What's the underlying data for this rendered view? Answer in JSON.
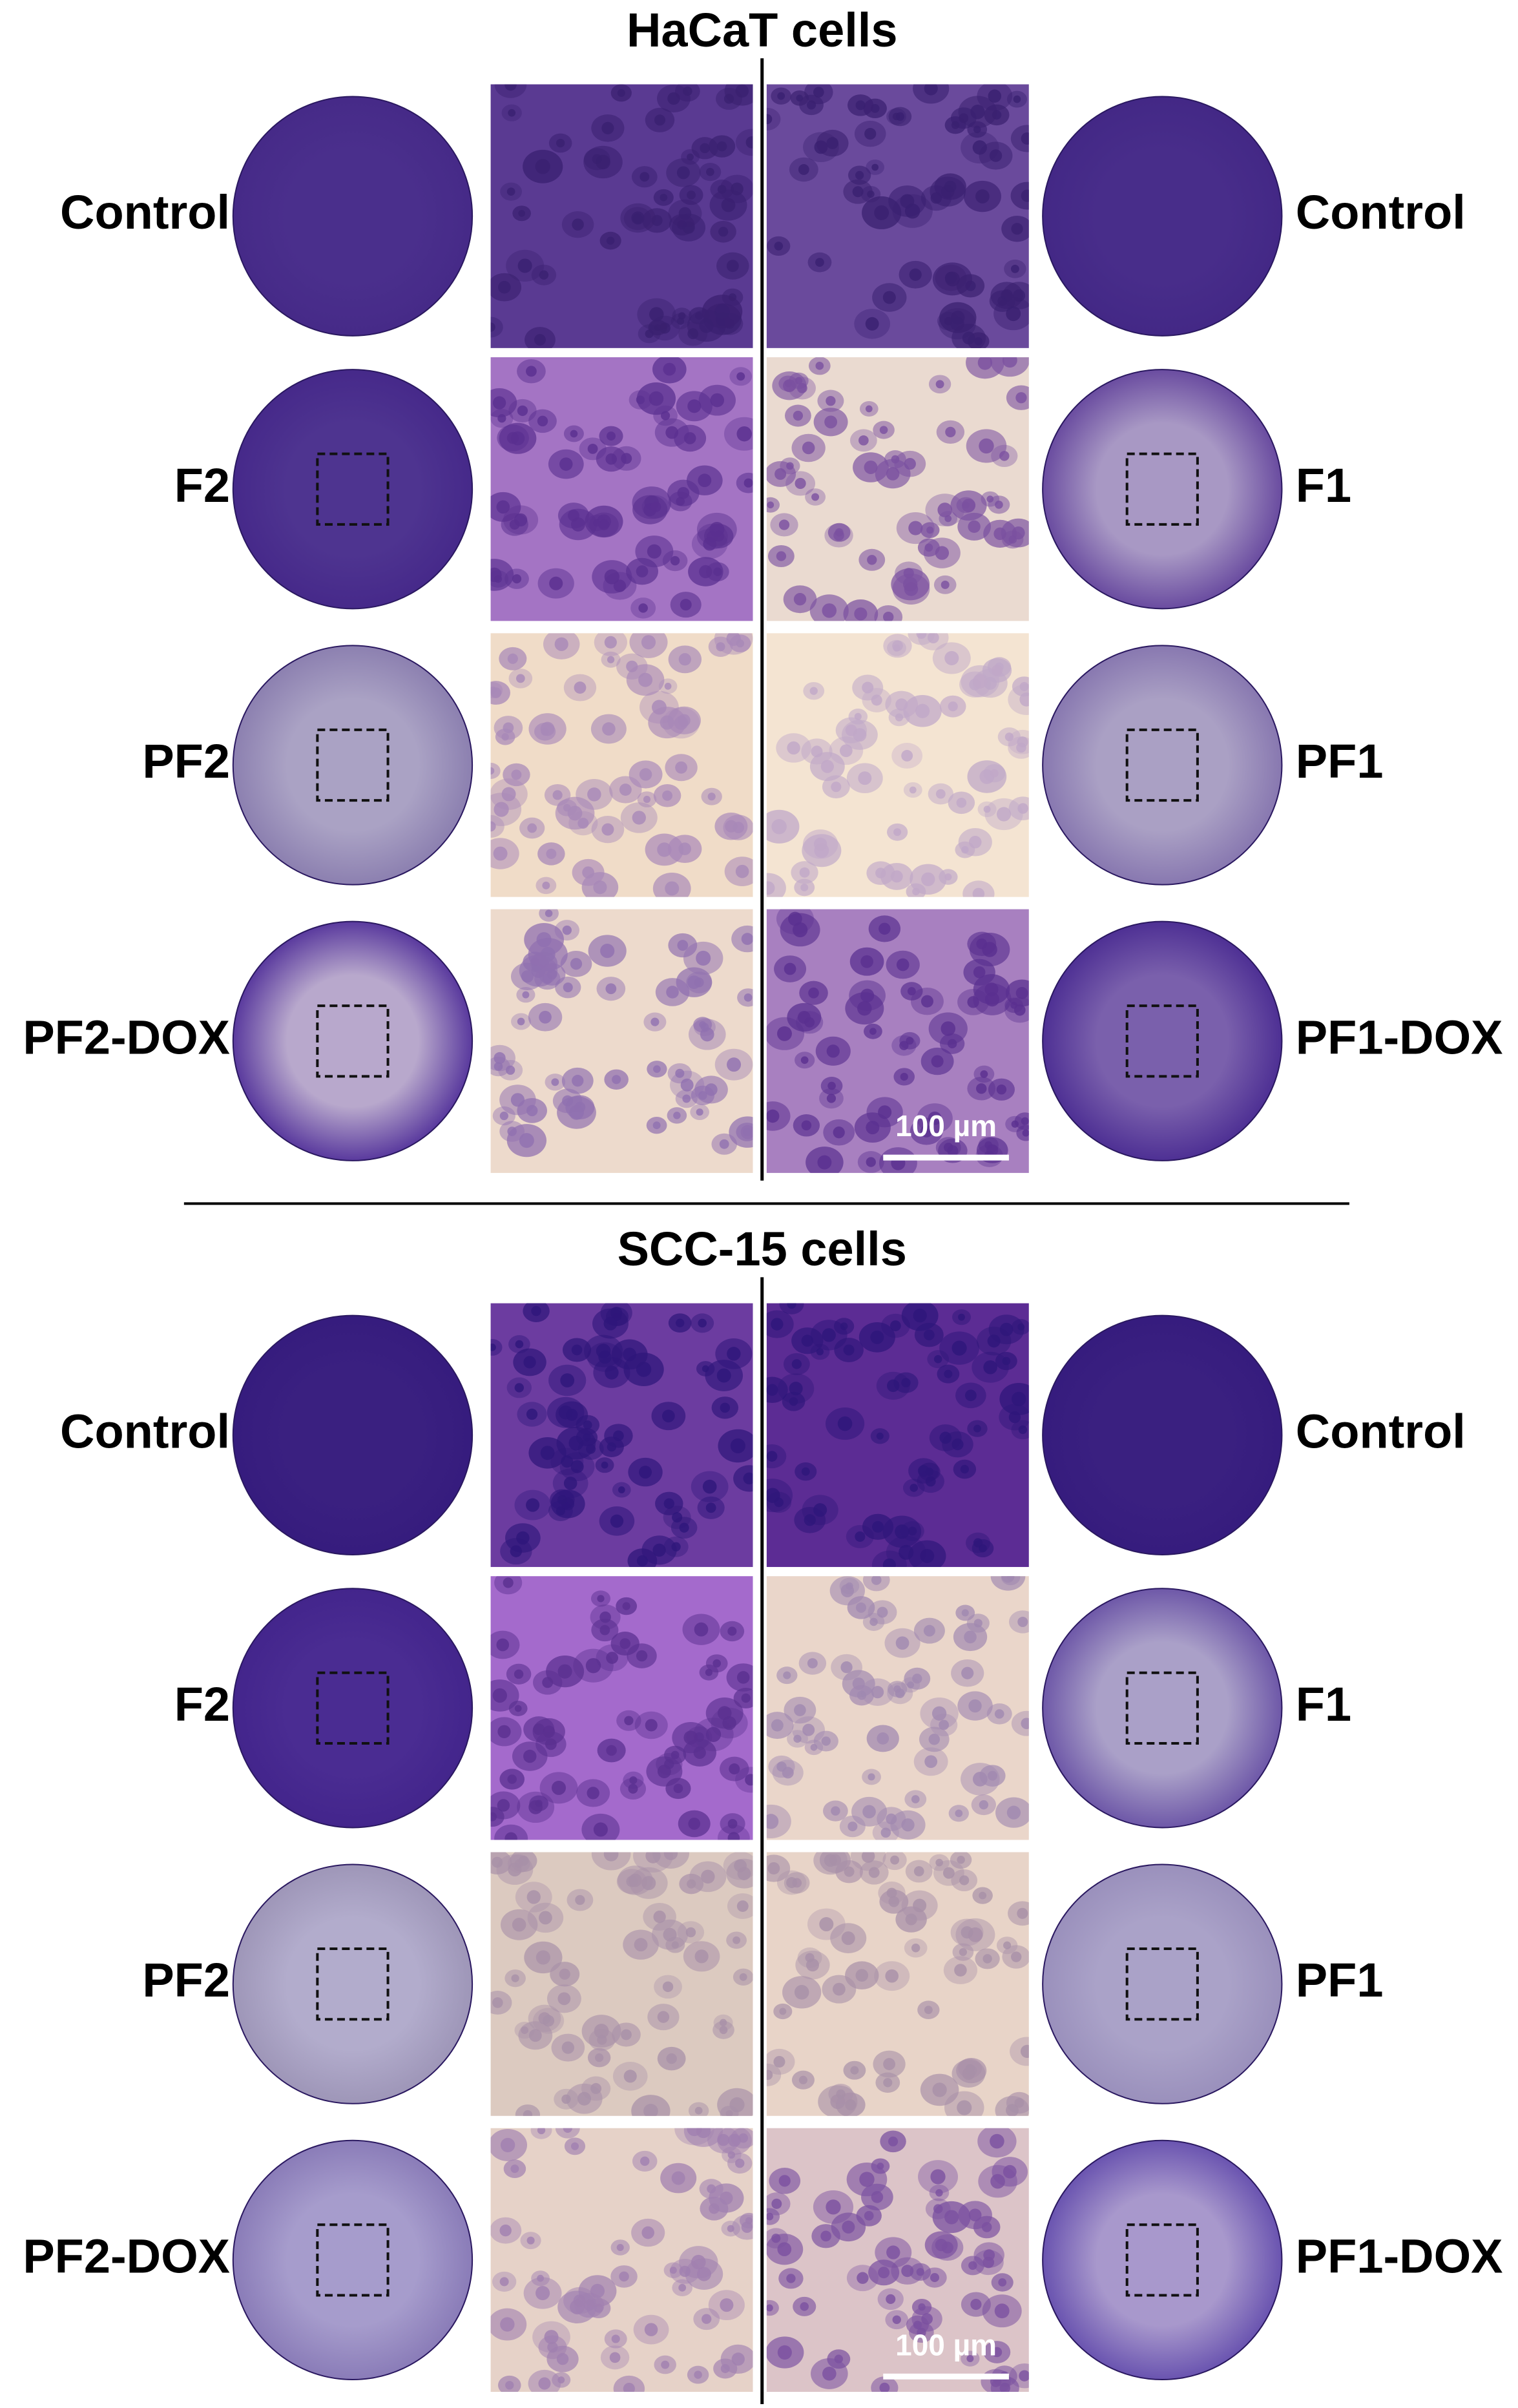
{
  "panels": [
    {
      "title": "HaCaT cells",
      "left_labels": [
        "Control",
        "F2",
        "PF2",
        "PF2-DOX"
      ],
      "right_labels": [
        "Control",
        "F1",
        "PF1",
        "PF1-DOX"
      ],
      "scale_bar": "100 µm"
    },
    {
      "title": "SCC-15 cells",
      "left_labels": [
        "Control",
        "F2",
        "PF2",
        "PF2-DOX"
      ],
      "right_labels": [
        "Control",
        "F1",
        "PF1",
        "PF1-DOX"
      ],
      "scale_bar": "100 µm"
    }
  ]
}
